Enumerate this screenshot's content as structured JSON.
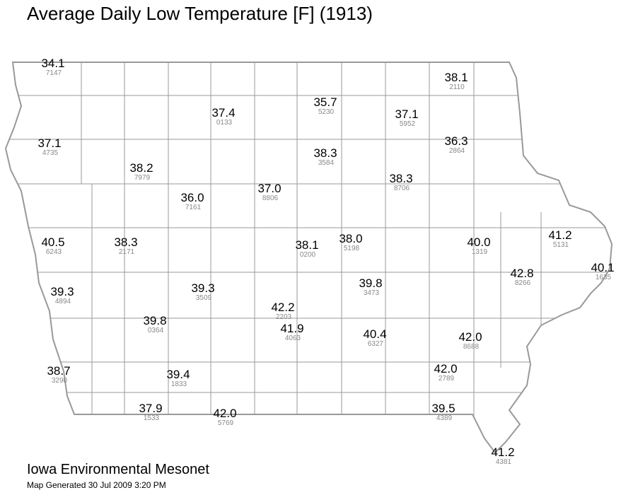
{
  "title": "Average Daily Low Temperature [F] (1913)",
  "stations": [
    {
      "temp": "34.1",
      "id": "7147"
    },
    {
      "temp": "38.1",
      "id": "2110"
    },
    {
      "temp": "37.4",
      "id": "0133"
    },
    {
      "temp": "35.7",
      "id": "5230"
    },
    {
      "temp": "37.1",
      "id": "5952"
    },
    {
      "temp": "37.1",
      "id": "4735"
    },
    {
      "temp": "36.3",
      "id": "2864"
    },
    {
      "temp": "38.3",
      "id": "3584"
    },
    {
      "temp": "38.2",
      "id": "7979"
    },
    {
      "temp": "38.3",
      "id": "8706"
    },
    {
      "temp": "37.0",
      "id": "8806"
    },
    {
      "temp": "36.0",
      "id": "7161"
    },
    {
      "temp": "40.5",
      "id": "6243"
    },
    {
      "temp": "38.3",
      "id": "2171"
    },
    {
      "temp": "38.1",
      "id": "0200"
    },
    {
      "temp": "38.0",
      "id": "5198"
    },
    {
      "temp": "40.0",
      "id": "1319"
    },
    {
      "temp": "41.2",
      "id": "5131"
    },
    {
      "temp": "40.1",
      "id": "1635"
    },
    {
      "temp": "42.8",
      "id": "8266"
    },
    {
      "temp": "39.3",
      "id": "4894"
    },
    {
      "temp": "39.3",
      "id": "3509"
    },
    {
      "temp": "39.8",
      "id": "3473"
    },
    {
      "temp": "42.2",
      "id": "2203"
    },
    {
      "temp": "39.8",
      "id": "0364"
    },
    {
      "temp": "41.9",
      "id": "4063"
    },
    {
      "temp": "40.4",
      "id": "6327"
    },
    {
      "temp": "42.0",
      "id": "8688"
    },
    {
      "temp": "38.7",
      "id": "3290"
    },
    {
      "temp": "39.4",
      "id": "1833"
    },
    {
      "temp": "42.0",
      "id": "2789"
    },
    {
      "temp": "37.9",
      "id": "1533"
    },
    {
      "temp": "42.0",
      "id": "5769"
    },
    {
      "temp": "39.5",
      "id": "4389"
    },
    {
      "temp": "41.2",
      "id": "4381"
    }
  ],
  "footer": {
    "org": "Iowa Environmental Mesonet",
    "generated": "Map Generated 30 Jul 2009 3:20 PM"
  }
}
